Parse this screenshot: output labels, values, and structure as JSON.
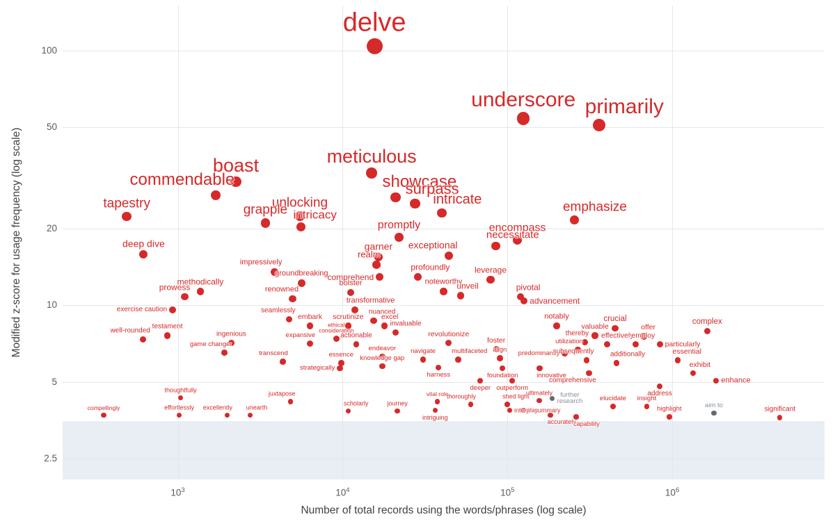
{
  "chart_data": {
    "type": "scatter",
    "title": "",
    "xlabel": "Number of total records using the words/phrases (log scale)",
    "ylabel": "Modified z-score for usage frequency (log scale)",
    "x_scale": "log",
    "y_scale": "log",
    "xlim": [
      200,
      8400000
    ],
    "ylim": [
      2.07,
      150
    ],
    "grid": true,
    "x_gridlines": [
      1000,
      10000,
      100000,
      1000000
    ],
    "y_gridlines": [
      2.5,
      5,
      10,
      20,
      50,
      100
    ],
    "x_ticks": [
      {
        "base": "10",
        "exp": "3",
        "value": 1000
      },
      {
        "base": "10",
        "exp": "4",
        "value": 10000
      },
      {
        "base": "10",
        "exp": "5",
        "value": 100000
      },
      {
        "base": "10",
        "exp": "6",
        "value": 1000000
      }
    ],
    "y_ticks": [
      "100",
      "50",
      "20",
      "10",
      "5",
      "2.5"
    ],
    "y_tick_values": [
      100,
      50,
      20,
      10,
      5,
      2.5
    ],
    "shaded_band": {
      "y_min": 2.07,
      "y_max": 3.5,
      "color": "#e9eef4"
    },
    "colors": {
      "primary": "#d62929",
      "muted_dot": "#5f6a72",
      "muted_label": "#8a9299",
      "grid": "#e3e6ea",
      "tick_text": "#565b60"
    },
    "points": [
      {
        "w": "delve",
        "x": 15600,
        "y": 104,
        "fs": 38,
        "lp": "a"
      },
      {
        "w": "underscore",
        "x": 125000,
        "y": 54,
        "fs": 30,
        "lp": "a"
      },
      {
        "w": "primarily",
        "x": 360000,
        "y": 51,
        "fs": 30,
        "lp": "ar"
      },
      {
        "w": "meticulous",
        "x": 15000,
        "y": 33,
        "fs": 27,
        "lp": "a"
      },
      {
        "w": "boast",
        "x": 2250,
        "y": 30.5,
        "fs": 27,
        "lp": "a"
      },
      {
        "w": "showcase",
        "x": 21000,
        "y": 26.5,
        "fs": 24,
        "lp": "ar"
      },
      {
        "w": "commendable",
        "x": 1700,
        "y": 27,
        "fs": 24,
        "lp": "al"
      },
      {
        "w": "surpass",
        "x": 27500,
        "y": 25,
        "fs": 22,
        "lp": "ar"
      },
      {
        "w": "intricate",
        "x": 40000,
        "y": 23,
        "fs": 20,
        "lp": "ar"
      },
      {
        "w": "unlocking",
        "x": 5500,
        "y": 22.4,
        "fs": 19,
        "lp": "a"
      },
      {
        "w": "tapestry",
        "x": 490,
        "y": 22.3,
        "fs": 19,
        "lp": "a"
      },
      {
        "w": "emphasize",
        "x": 255000,
        "y": 21.6,
        "fs": 19,
        "lp": "ar"
      },
      {
        "w": "grapple",
        "x": 3400,
        "y": 21,
        "fs": 19,
        "lp": "a"
      },
      {
        "w": "intricacy",
        "x": 5600,
        "y": 20.3,
        "fs": 17,
        "lp": "ar"
      },
      {
        "w": "encompass",
        "x": 115000,
        "y": 18,
        "fs": 16,
        "lp": "a"
      },
      {
        "w": "promptly",
        "x": 22000,
        "y": 18.5,
        "fs": 16,
        "lp": "a"
      },
      {
        "w": "necessitate",
        "x": 85000,
        "y": 17.1,
        "fs": 15,
        "lp": "ar"
      },
      {
        "w": "deep dive",
        "x": 620,
        "y": 15.8,
        "fs": 14,
        "lp": "a"
      },
      {
        "w": "exceptional",
        "x": 44000,
        "y": 15.6,
        "fs": 14,
        "lp": "al"
      },
      {
        "w": "garner",
        "x": 16500,
        "y": 15.4,
        "fs": 14,
        "lp": "a"
      },
      {
        "w": "realm",
        "x": 16000,
        "y": 14.4,
        "fs": 13,
        "lp": "al"
      },
      {
        "w": "impressively",
        "x": 3860,
        "y": 13.5,
        "fs": 11,
        "lp": "al"
      },
      {
        "w": "groundbreaking",
        "x": 5630,
        "y": 12.2,
        "fs": 11,
        "lp": "a"
      },
      {
        "w": "comprehend",
        "x": 16800,
        "y": 12.9,
        "fs": 12,
        "lp": "l"
      },
      {
        "w": "profoundly",
        "x": 28600,
        "y": 12.9,
        "fs": 12,
        "lp": "ar"
      },
      {
        "w": "leverage",
        "x": 79000,
        "y": 12.6,
        "fs": 12,
        "lp": "a"
      },
      {
        "w": "bolster",
        "x": 11200,
        "y": 11.2,
        "fs": 11,
        "lp": "a"
      },
      {
        "w": "methodically",
        "x": 1370,
        "y": 11.3,
        "fs": 12,
        "lp": "a"
      },
      {
        "w": "prowess",
        "x": 1100,
        "y": 10.8,
        "fs": 12,
        "lp": "al"
      },
      {
        "w": "noteworthy",
        "x": 41000,
        "y": 11.3,
        "fs": 11,
        "lp": "a"
      },
      {
        "w": "unveil",
        "x": 52000,
        "y": 10.9,
        "fs": 12,
        "lp": "ar"
      },
      {
        "w": "pivotal",
        "x": 120000,
        "y": 10.8,
        "fs": 12,
        "lp": "ar"
      },
      {
        "w": "advancement",
        "x": 126000,
        "y": 10.4,
        "fs": 12,
        "lp": "r"
      },
      {
        "w": "renowned",
        "x": 4970,
        "y": 10.6,
        "fs": 11,
        "lp": "al"
      },
      {
        "w": "transformative",
        "x": 11900,
        "y": 9.6,
        "fs": 11,
        "lp": "ar"
      },
      {
        "w": "exercise caution",
        "x": 930,
        "y": 9.6,
        "fs": 10,
        "lp": "l"
      },
      {
        "w": "seamlessly",
        "x": 4740,
        "y": 8.8,
        "fs": 10,
        "lp": "al"
      },
      {
        "w": "nuanced",
        "x": 15400,
        "y": 8.7,
        "fs": 10,
        "lp": "ar"
      },
      {
        "w": "embark",
        "x": 6340,
        "y": 8.3,
        "fs": 10.5,
        "lp": "a"
      },
      {
        "w": "scrutinize",
        "x": 10800,
        "y": 8.3,
        "fs": 10.5,
        "lp": "a"
      },
      {
        "w": "excel",
        "x": 17900,
        "y": 8.3,
        "fs": 10.5,
        "lp": "ar"
      },
      {
        "w": "notably",
        "x": 199000,
        "y": 8.3,
        "fs": 11,
        "lp": "a"
      },
      {
        "w": "crucial",
        "x": 450000,
        "y": 8.1,
        "fs": 11.5,
        "lp": "a"
      },
      {
        "w": "complex",
        "x": 1630000,
        "y": 7.9,
        "fs": 11.5,
        "lp": "a"
      },
      {
        "w": "invaluable",
        "x": 21000,
        "y": 7.8,
        "fs": 10,
        "lp": "ar"
      },
      {
        "w": "testament",
        "x": 865,
        "y": 7.6,
        "fs": 10,
        "lp": "a"
      },
      {
        "w": "well-rounded",
        "x": 615,
        "y": 7.35,
        "fs": 10,
        "lp": "al"
      },
      {
        "w": "valuable",
        "x": 340000,
        "y": 7.6,
        "fs": 10.5,
        "lp": "a"
      },
      {
        "w": "offer",
        "x": 670000,
        "y": 7.55,
        "fs": 10.5,
        "lp": "ar"
      },
      {
        "w": "thereby",
        "x": 294000,
        "y": 7.15,
        "fs": 10,
        "lp": "al"
      },
      {
        "w": "effectively",
        "x": 402000,
        "y": 7,
        "fs": 10.5,
        "lp": "ar"
      },
      {
        "w": "employ",
        "x": 600000,
        "y": 7,
        "fs": 10.5,
        "lp": "ar"
      },
      {
        "w": "particularly",
        "x": 840000,
        "y": 7,
        "fs": 10.5,
        "lp": "r"
      },
      {
        "w": "ethical\nconsideration",
        "x": 9160,
        "y": 7.4,
        "fs": 8.5,
        "lp": "a"
      },
      {
        "w": "ingenious",
        "x": 2110,
        "y": 7.1,
        "fs": 10,
        "lp": "a"
      },
      {
        "w": "revolutionize",
        "x": 44000,
        "y": 7.1,
        "fs": 10.5,
        "lp": "a"
      },
      {
        "w": "actionable",
        "x": 12100,
        "y": 7,
        "fs": 10,
        "lp": "a"
      },
      {
        "w": "expansive",
        "x": 6340,
        "y": 7.05,
        "fs": 9.5,
        "lp": "al"
      },
      {
        "w": "utilization",
        "x": 268000,
        "y": 6.7,
        "fs": 9.5,
        "lp": "al"
      },
      {
        "w": "game changer",
        "x": 1920,
        "y": 6.5,
        "fs": 9.5,
        "lp": "al"
      },
      {
        "w": "foster",
        "x": 85500,
        "y": 6.73,
        "fs": 10.5,
        "lp": "a"
      },
      {
        "w": "predominantly",
        "x": 223000,
        "y": 6.46,
        "fs": 9.5,
        "lp": "l"
      },
      {
        "w": "endeavor",
        "x": 17400,
        "y": 6.27,
        "fs": 9.5,
        "lp": "a"
      },
      {
        "w": "navigate",
        "x": 30800,
        "y": 6.12,
        "fs": 9.5,
        "lp": "a"
      },
      {
        "w": "multifaceted",
        "x": 50200,
        "y": 6.12,
        "fs": 9.5,
        "lp": "ar"
      },
      {
        "w": "align",
        "x": 89900,
        "y": 6.19,
        "fs": 9.5,
        "lp": "a"
      },
      {
        "w": "transcend",
        "x": 4330,
        "y": 6,
        "fs": 9.5,
        "lp": "al"
      },
      {
        "w": "essence",
        "x": 9800,
        "y": 5.93,
        "fs": 9.5,
        "lp": "a"
      },
      {
        "w": "knowledge gap",
        "x": 17400,
        "y": 5.76,
        "fs": 9.5,
        "lp": "a"
      },
      {
        "w": "subsequently",
        "x": 302000,
        "y": 6.08,
        "fs": 10,
        "lp": "al"
      },
      {
        "w": "additionally",
        "x": 459000,
        "y": 5.93,
        "fs": 10,
        "lp": "ar"
      },
      {
        "w": "essential",
        "x": 1080000,
        "y": 6.08,
        "fs": 10.5,
        "lp": "ar"
      },
      {
        "w": "strategically",
        "x": 9620,
        "y": 5.66,
        "fs": 9.5,
        "lp": "l"
      },
      {
        "w": "harness",
        "x": 38200,
        "y": 5.69,
        "fs": 9.5,
        "lp": "b"
      },
      {
        "w": "foundation",
        "x": 93400,
        "y": 5.66,
        "fs": 9.5,
        "lp": "b"
      },
      {
        "w": "innovative",
        "x": 157000,
        "y": 5.66,
        "fs": 9.5,
        "lp": "br"
      },
      {
        "w": "comprehensive",
        "x": 313000,
        "y": 5.4,
        "fs": 10,
        "lp": "bl"
      },
      {
        "w": "exhibit",
        "x": 1340000,
        "y": 5.4,
        "fs": 10.5,
        "lp": "ar"
      },
      {
        "w": "enhance",
        "x": 1850000,
        "y": 5.05,
        "fs": 11,
        "lp": "r"
      },
      {
        "w": "deeper",
        "x": 68500,
        "y": 5.05,
        "fs": 9.5,
        "lp": "b"
      },
      {
        "w": "outperform",
        "x": 107000,
        "y": 5.05,
        "fs": 9.5,
        "lp": "b"
      },
      {
        "w": "address",
        "x": 840000,
        "y": 4.8,
        "fs": 10,
        "lp": "b"
      },
      {
        "w": "thoughtfully",
        "x": 1040,
        "y": 4.33,
        "fs": 9,
        "lp": "a"
      },
      {
        "w": "juxtapose",
        "x": 4830,
        "y": 4.19,
        "fs": 9,
        "lp": "al"
      },
      {
        "w": "vital role",
        "x": 37600,
        "y": 4.19,
        "fs": 8.5,
        "lp": "a"
      },
      {
        "w": "thoroughly",
        "x": 59800,
        "y": 4.08,
        "fs": 9,
        "lp": "al"
      },
      {
        "w": "shed light",
        "x": 99800,
        "y": 4.08,
        "fs": 9,
        "lp": "ar"
      },
      {
        "w": "ultimately",
        "x": 156000,
        "y": 4.22,
        "fs": 9,
        "lp": "a"
      },
      {
        "w": "further\nresearch",
        "x": 187000,
        "y": 4.3,
        "fs": 9.5,
        "lp": "r",
        "c": "muted"
      },
      {
        "w": "elucidate",
        "x": 437000,
        "y": 4,
        "fs": 9.5,
        "lp": "a"
      },
      {
        "w": "insight",
        "x": 700000,
        "y": 4,
        "fs": 9.5,
        "lp": "a"
      },
      {
        "w": "scholarly",
        "x": 10800,
        "y": 3.84,
        "fs": 9,
        "lp": "ar"
      },
      {
        "w": "journey",
        "x": 21500,
        "y": 3.84,
        "fs": 9,
        "lp": "a"
      },
      {
        "w": "interplay",
        "x": 103000,
        "y": 3.86,
        "fs": 9,
        "lp": "r"
      },
      {
        "w": "compellingly",
        "x": 355,
        "y": 3.7,
        "fs": 8.5,
        "lp": "a"
      },
      {
        "w": "effortlessly",
        "x": 1020,
        "y": 3.7,
        "fs": 9,
        "lp": "a"
      },
      {
        "w": "excellently",
        "x": 1990,
        "y": 3.7,
        "fs": 9,
        "lp": "al"
      },
      {
        "w": "unearth",
        "x": 2740,
        "y": 3.7,
        "fs": 9,
        "lp": "ar"
      },
      {
        "w": "intriguing",
        "x": 36400,
        "y": 3.86,
        "fs": 9,
        "lp": "b"
      },
      {
        "w": "in summary",
        "x": 125000,
        "y": 3.86,
        "fs": 9,
        "lp": "r"
      },
      {
        "w": "accurately",
        "x": 182000,
        "y": 3.7,
        "fs": 9,
        "lp": "br"
      },
      {
        "w": "capability",
        "x": 261000,
        "y": 3.64,
        "fs": 9,
        "lp": "br"
      },
      {
        "w": "highlight",
        "x": 960000,
        "y": 3.64,
        "fs": 9.5,
        "lp": "a"
      },
      {
        "w": "aim to",
        "x": 1790000,
        "y": 3.77,
        "fs": 9.5,
        "lp": "a",
        "c": "muted"
      },
      {
        "w": "significant",
        "x": 4500000,
        "y": 3.62,
        "fs": 10,
        "lp": "a"
      }
    ]
  }
}
